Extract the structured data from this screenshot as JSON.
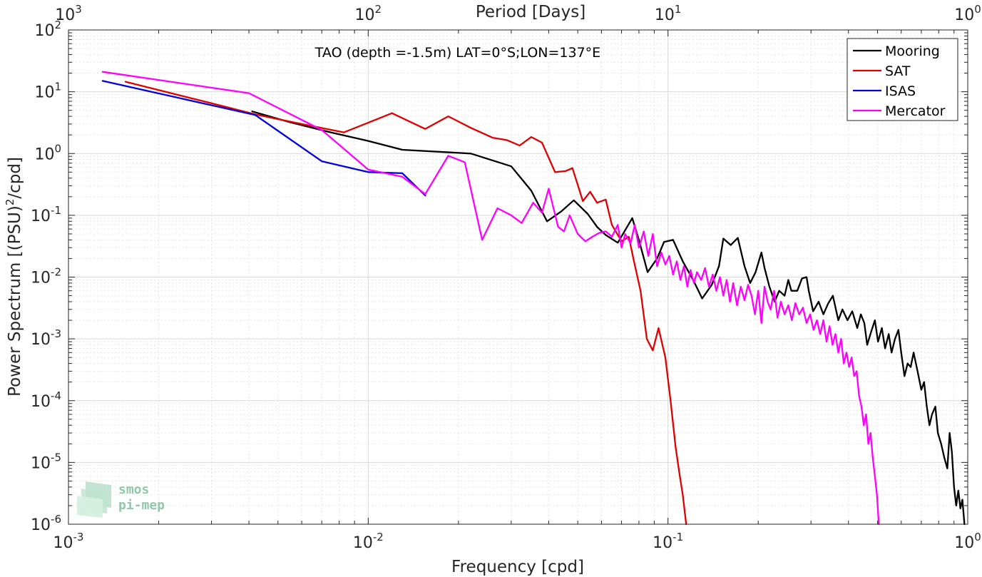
{
  "chart_data": {
    "type": "line",
    "title": "TAO (depth =-1.5m) LAT=0°S;LON=137°E",
    "xlabel": "Frequency [cpd]",
    "ylabel_main": "Power Spectrum [(PSU)",
    "ylabel_sup": "2",
    "ylabel_tail": "/cpd]",
    "top_xlabel": "Period [Days]",
    "xscale": "log",
    "yscale": "log",
    "xlim": [
      0.001,
      1
    ],
    "ylim": [
      1e-06,
      100
    ],
    "grid": true,
    "legend_position": "top-right",
    "x_tick_labels": [
      {
        "value": 0.001,
        "base": "10",
        "exp": "-3"
      },
      {
        "value": 0.01,
        "base": "10",
        "exp": "-2"
      },
      {
        "value": 0.1,
        "base": "10",
        "exp": "-1"
      },
      {
        "value": 1,
        "base": "10",
        "exp": "0"
      }
    ],
    "top_tick_labels": [
      {
        "value": 0.001,
        "base": "10",
        "exp": "3"
      },
      {
        "value": 0.01,
        "base": "10",
        "exp": "2"
      },
      {
        "value": 0.1,
        "base": "10",
        "exp": "1"
      },
      {
        "value": 1,
        "base": "10",
        "exp": "0"
      }
    ],
    "y_tick_labels": [
      {
        "value": 100,
        "base": "10",
        "exp": "2"
      },
      {
        "value": 10,
        "base": "10",
        "exp": "1"
      },
      {
        "value": 1,
        "base": "10",
        "exp": "0"
      },
      {
        "value": 0.1,
        "base": "10",
        "exp": "-1"
      },
      {
        "value": 0.01,
        "base": "10",
        "exp": "-2"
      },
      {
        "value": 0.001,
        "base": "10",
        "exp": "-3"
      },
      {
        "value": 0.0001,
        "base": "10",
        "exp": "-4"
      },
      {
        "value": 1e-05,
        "base": "10",
        "exp": "-5"
      },
      {
        "value": 1e-06,
        "base": "10",
        "exp": "-6"
      }
    ],
    "series": [
      {
        "name": "Mooring",
        "color": "#000000",
        "points": [
          [
            0.0041,
            4.8
          ],
          [
            0.0055,
            3.2
          ],
          [
            0.0075,
            2.2
          ],
          [
            0.01,
            1.6
          ],
          [
            0.013,
            1.15
          ],
          [
            0.022,
            1.0
          ],
          [
            0.03,
            0.62
          ],
          [
            0.035,
            0.25
          ],
          [
            0.0395,
            0.08
          ],
          [
            0.044,
            0.115
          ],
          [
            0.0485,
            0.175
          ],
          [
            0.054,
            0.105
          ],
          [
            0.058,
            0.065
          ],
          [
            0.062,
            0.048
          ],
          [
            0.068,
            0.036
          ],
          [
            0.076,
            0.09
          ],
          [
            0.08,
            0.04
          ],
          [
            0.0855,
            0.012
          ],
          [
            0.092,
            0.02
          ],
          [
            0.097,
            0.037
          ],
          [
            0.104,
            0.04
          ],
          [
            0.112,
            0.018
          ],
          [
            0.122,
            0.0085
          ],
          [
            0.13,
            0.0045
          ],
          [
            0.14,
            0.0075
          ],
          [
            0.148,
            0.015
          ],
          [
            0.153,
            0.042
          ],
          [
            0.162,
            0.033
          ],
          [
            0.171,
            0.043
          ],
          [
            0.18,
            0.015
          ],
          [
            0.188,
            0.008
          ],
          [
            0.196,
            0.012
          ],
          [
            0.205,
            0.025
          ],
          [
            0.21,
            0.014
          ],
          [
            0.218,
            0.007
          ],
          [
            0.227,
            0.004
          ],
          [
            0.235,
            0.006
          ],
          [
            0.245,
            0.005
          ],
          [
            0.252,
            0.009
          ],
          [
            0.258,
            0.006
          ],
          [
            0.27,
            0.006
          ],
          [
            0.28,
            0.0095
          ],
          [
            0.29,
            0.01
          ],
          [
            0.295,
            0.006
          ],
          [
            0.305,
            0.0028
          ],
          [
            0.318,
            0.004
          ],
          [
            0.33,
            0.0025
          ],
          [
            0.342,
            0.0037
          ],
          [
            0.355,
            0.005
          ],
          [
            0.37,
            0.002
          ],
          [
            0.382,
            0.003
          ],
          [
            0.397,
            0.002
          ],
          [
            0.412,
            0.0028
          ],
          [
            0.428,
            0.0015
          ],
          [
            0.44,
            0.0025
          ],
          [
            0.452,
            0.0018
          ],
          [
            0.462,
            0.0008
          ],
          [
            0.476,
            0.0013
          ],
          [
            0.49,
            0.002
          ],
          [
            0.502,
            0.0009
          ],
          [
            0.517,
            0.0015
          ],
          [
            0.53,
            0.0007
          ],
          [
            0.545,
            0.0012
          ],
          [
            0.557,
            0.0006
          ],
          [
            0.572,
            0.001
          ],
          [
            0.587,
            0.0014
          ],
          [
            0.6,
            0.0006
          ],
          [
            0.615,
            0.00025
          ],
          [
            0.63,
            0.0004
          ],
          [
            0.645,
            0.00035
          ],
          [
            0.66,
            0.0006
          ],
          [
            0.68,
            0.0003
          ],
          [
            0.7,
            0.00015
          ],
          [
            0.715,
            0.0002
          ],
          [
            0.73,
            8e-05
          ],
          [
            0.745,
            4e-05
          ],
          [
            0.76,
            6e-05
          ],
          [
            0.78,
            8e-05
          ],
          [
            0.795,
            3e-05
          ],
          [
            0.815,
            2e-05
          ],
          [
            0.835,
            1.2e-05
          ],
          [
            0.855,
            8e-06
          ],
          [
            0.87,
            3e-05
          ],
          [
            0.885,
            1.5e-05
          ],
          [
            0.9,
            4e-06
          ],
          [
            0.915,
            2e-06
          ],
          [
            0.93,
            3.5e-06
          ],
          [
            0.945,
            1.8e-06
          ],
          [
            0.96,
            2.5e-06
          ],
          [
            0.975,
            1e-06
          ]
        ]
      },
      {
        "name": "SAT",
        "color": "#e00000",
        "points": [
          [
            0.00155,
            14.5
          ],
          [
            0.003,
            6.5
          ],
          [
            0.0042,
            4.3
          ],
          [
            0.006,
            3.0
          ],
          [
            0.0083,
            2.2
          ],
          [
            0.012,
            4.5
          ],
          [
            0.0155,
            2.5
          ],
          [
            0.0185,
            4.0
          ],
          [
            0.022,
            2.6
          ],
          [
            0.026,
            1.8
          ],
          [
            0.029,
            1.65
          ],
          [
            0.032,
            1.35
          ],
          [
            0.035,
            1.85
          ],
          [
            0.038,
            1.5
          ],
          [
            0.042,
            0.5
          ],
          [
            0.0455,
            0.52
          ],
          [
            0.048,
            0.58
          ],
          [
            0.052,
            0.17
          ],
          [
            0.055,
            0.24
          ],
          [
            0.058,
            0.16
          ],
          [
            0.062,
            0.18
          ],
          [
            0.065,
            0.07
          ],
          [
            0.07,
            0.038
          ],
          [
            0.074,
            0.045
          ],
          [
            0.077,
            0.018
          ],
          [
            0.081,
            0.006
          ],
          [
            0.085,
            0.001
          ],
          [
            0.089,
            0.00065
          ],
          [
            0.093,
            0.0015
          ],
          [
            0.098,
            0.0005
          ],
          [
            0.102,
            0.0001
          ],
          [
            0.106,
            1.8e-05
          ],
          [
            0.109,
            7e-06
          ],
          [
            0.112,
            3e-06
          ],
          [
            0.115,
            1e-06
          ]
        ]
      },
      {
        "name": "ISAS",
        "color": "#0000e0",
        "points": [
          [
            0.0013,
            15.0
          ],
          [
            0.0042,
            4.2
          ],
          [
            0.007,
            0.75
          ],
          [
            0.01,
            0.5
          ],
          [
            0.013,
            0.48
          ],
          [
            0.0155,
            0.21
          ]
        ]
      },
      {
        "name": "Mercator",
        "color": "#ff00ff",
        "points": [
          [
            0.0013,
            21.0
          ],
          [
            0.004,
            9.5
          ],
          [
            0.007,
            2.4
          ],
          [
            0.01,
            0.55
          ],
          [
            0.013,
            0.42
          ],
          [
            0.0155,
            0.22
          ],
          [
            0.0185,
            0.92
          ],
          [
            0.021,
            0.72
          ],
          [
            0.024,
            0.04
          ],
          [
            0.027,
            0.13
          ],
          [
            0.03,
            0.1
          ],
          [
            0.0325,
            0.075
          ],
          [
            0.0355,
            0.16
          ],
          [
            0.038,
            0.11
          ],
          [
            0.04,
            0.27
          ],
          [
            0.043,
            0.065
          ],
          [
            0.045,
            0.055
          ],
          [
            0.047,
            0.1
          ],
          [
            0.05,
            0.05
          ],
          [
            0.053,
            0.038
          ],
          [
            0.056,
            0.045
          ],
          [
            0.059,
            0.052
          ],
          [
            0.062,
            0.055
          ],
          [
            0.065,
            0.045
          ],
          [
            0.068,
            0.07
          ],
          [
            0.07,
            0.03
          ],
          [
            0.072,
            0.05
          ],
          [
            0.075,
            0.035
          ],
          [
            0.0775,
            0.07
          ],
          [
            0.08,
            0.03
          ],
          [
            0.083,
            0.055
          ],
          [
            0.086,
            0.022
          ],
          [
            0.089,
            0.05
          ],
          [
            0.092,
            0.015
          ],
          [
            0.095,
            0.025
          ],
          [
            0.098,
            0.016
          ],
          [
            0.101,
            0.022
          ],
          [
            0.104,
            0.011
          ],
          [
            0.107,
            0.018
          ],
          [
            0.11,
            0.009
          ],
          [
            0.113,
            0.015
          ],
          [
            0.116,
            0.007
          ],
          [
            0.119,
            0.013
          ],
          [
            0.122,
            0.008
          ],
          [
            0.125,
            0.012
          ],
          [
            0.129,
            0.009
          ],
          [
            0.133,
            0.014
          ],
          [
            0.137,
            0.007
          ],
          [
            0.141,
            0.011
          ],
          [
            0.145,
            0.006
          ],
          [
            0.149,
            0.01
          ],
          [
            0.153,
            0.005
          ],
          [
            0.157,
            0.009
          ],
          [
            0.161,
            0.004
          ],
          [
            0.165,
            0.008
          ],
          [
            0.17,
            0.0035
          ],
          [
            0.175,
            0.007
          ],
          [
            0.18,
            0.0042
          ],
          [
            0.185,
            0.0075
          ],
          [
            0.19,
            0.005
          ],
          [
            0.195,
            0.0025
          ],
          [
            0.2,
            0.006
          ],
          [
            0.205,
            0.0018
          ],
          [
            0.21,
            0.007
          ],
          [
            0.215,
            0.004
          ],
          [
            0.22,
            0.003
          ],
          [
            0.226,
            0.006
          ],
          [
            0.232,
            0.0022
          ],
          [
            0.238,
            0.004
          ],
          [
            0.245,
            0.0025
          ],
          [
            0.252,
            0.0035
          ],
          [
            0.259,
            0.002
          ],
          [
            0.266,
            0.0038
          ],
          [
            0.274,
            0.0025
          ],
          [
            0.282,
            0.0032
          ],
          [
            0.29,
            0.0018
          ],
          [
            0.298,
            0.0025
          ],
          [
            0.306,
            0.0014
          ],
          [
            0.314,
            0.002
          ],
          [
            0.322,
            0.0012
          ],
          [
            0.33,
            0.002
          ],
          [
            0.338,
            0.0009
          ],
          [
            0.346,
            0.0016
          ],
          [
            0.354,
            0.0008
          ],
          [
            0.362,
            0.0012
          ],
          [
            0.37,
            0.0006
          ],
          [
            0.378,
            0.001
          ],
          [
            0.386,
            0.0004
          ],
          [
            0.394,
            0.0006
          ],
          [
            0.402,
            0.00035
          ],
          [
            0.41,
            0.0005
          ],
          [
            0.418,
            0.00025
          ],
          [
            0.426,
            0.0003
          ],
          [
            0.434,
            0.00012
          ],
          [
            0.442,
            8e-05
          ],
          [
            0.45,
            4e-05
          ],
          [
            0.458,
            6e-05
          ],
          [
            0.466,
            2e-05
          ],
          [
            0.474,
            3e-05
          ],
          [
            0.482,
            1.2e-05
          ],
          [
            0.49,
            6e-06
          ],
          [
            0.498,
            3e-06
          ],
          [
            0.505,
            1e-06
          ]
        ]
      }
    ]
  },
  "logo": {
    "line1": "smos",
    "line2": "pi-mep"
  }
}
